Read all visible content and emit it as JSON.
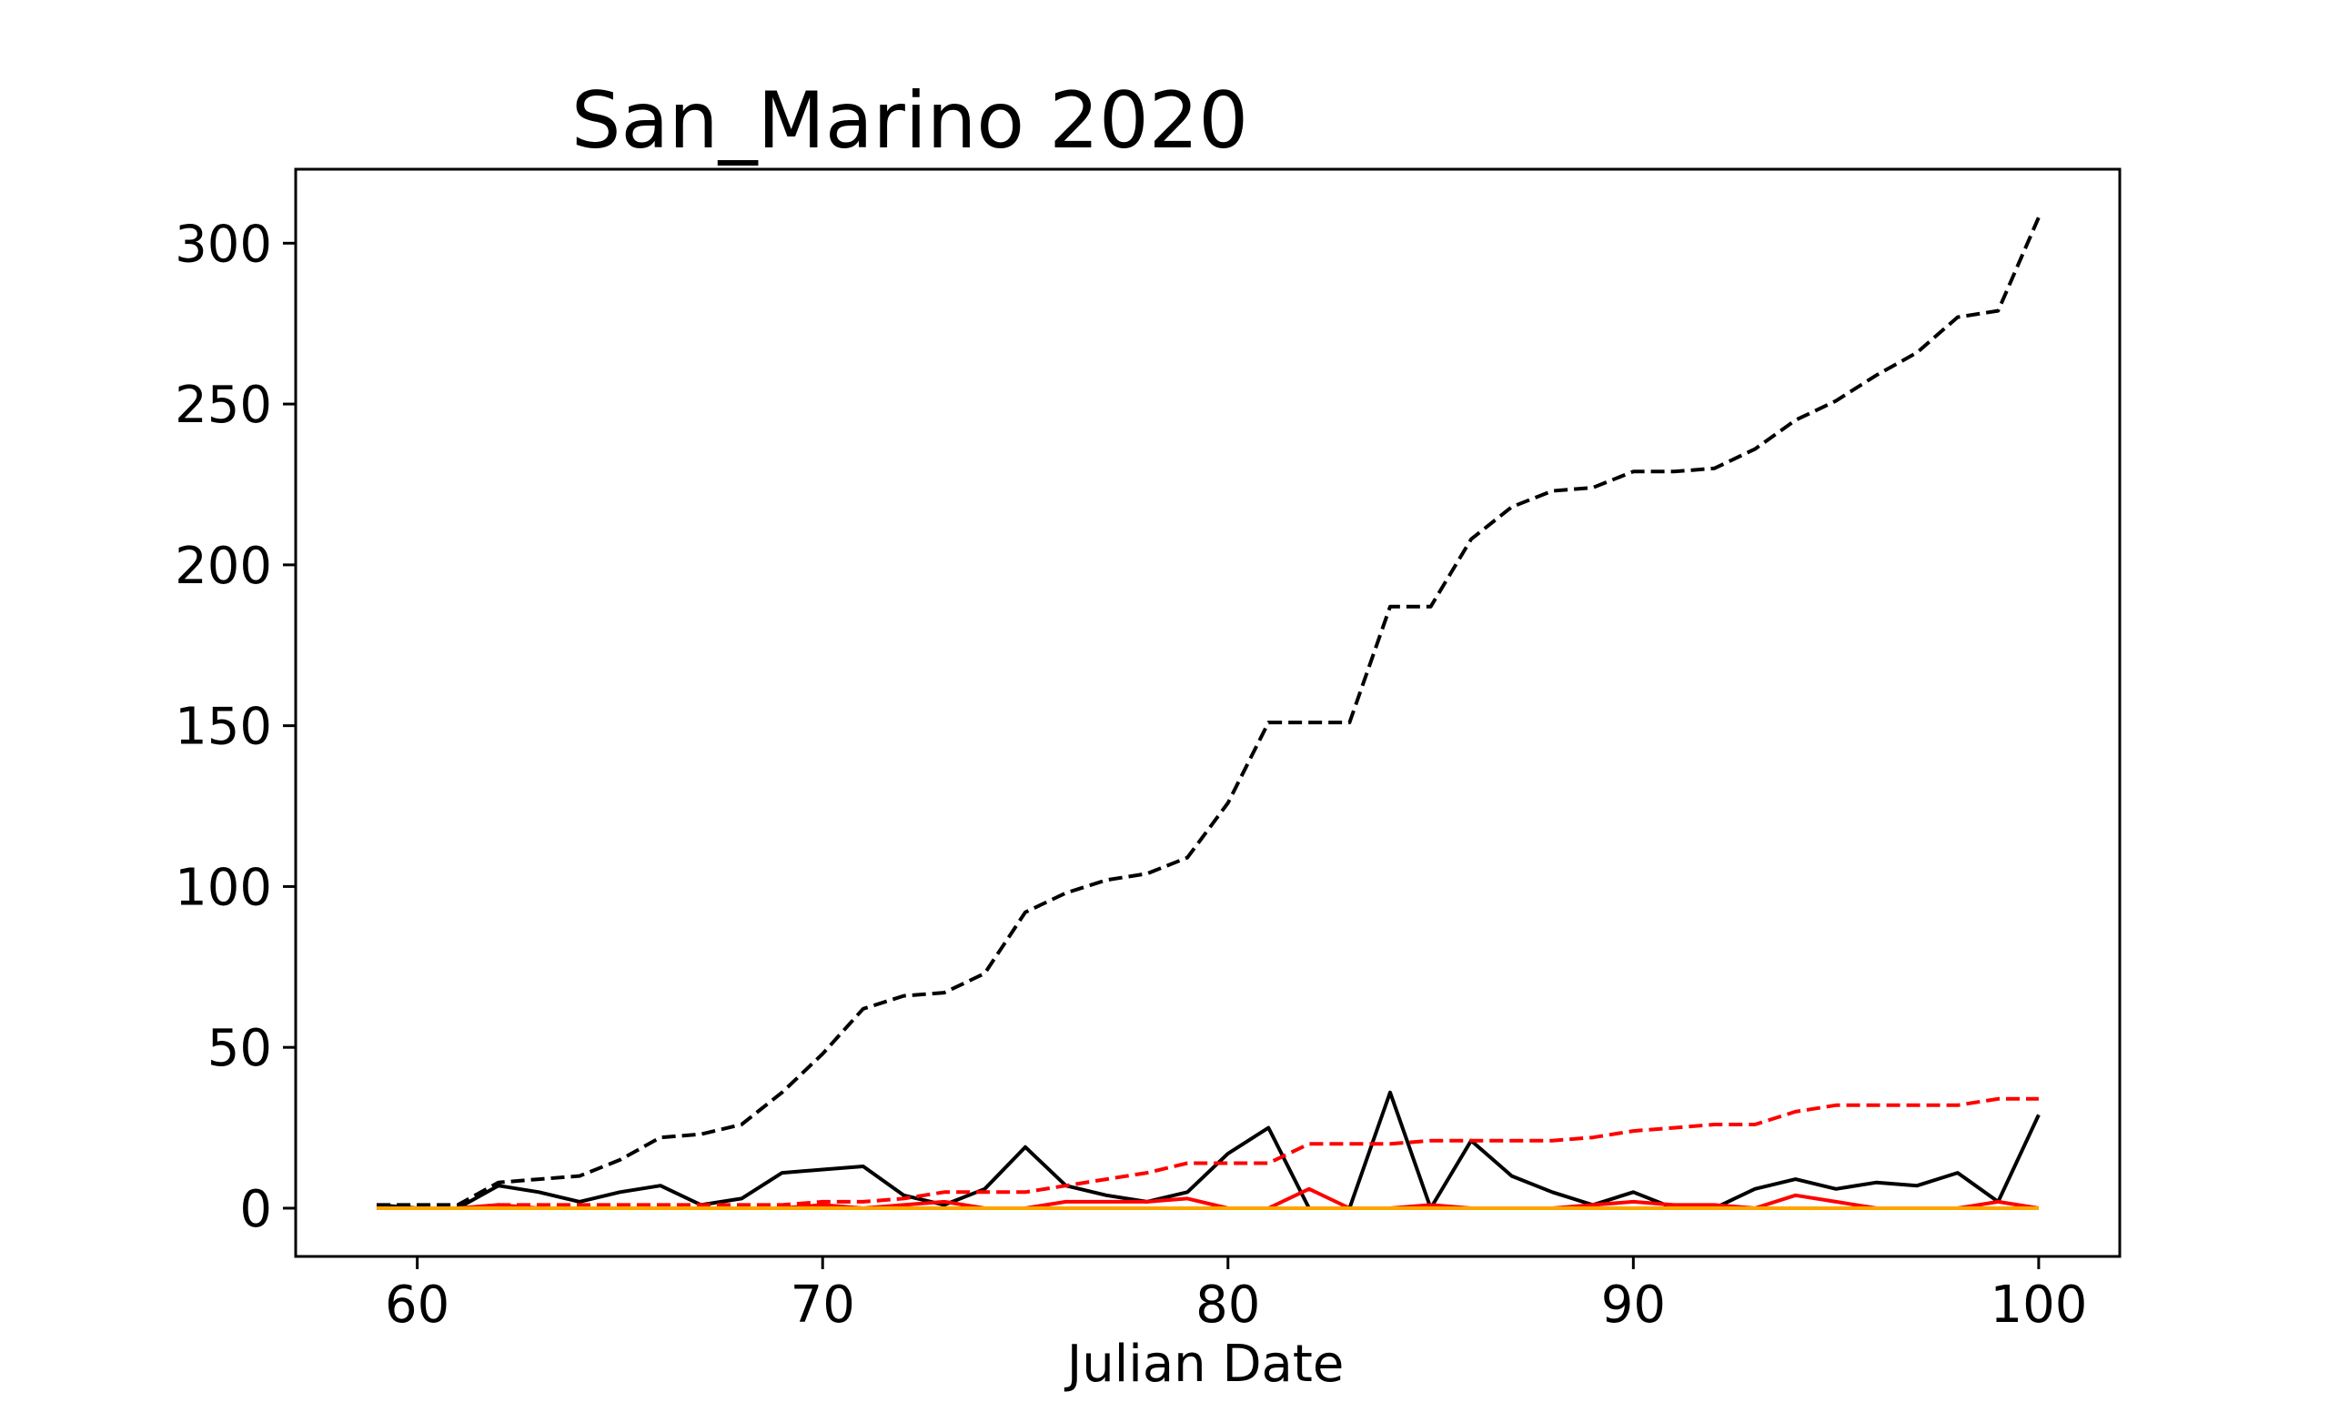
{
  "chart_data": {
    "type": "line",
    "title": "San_Marino 2020",
    "xlabel": "Julian Date",
    "ylabel": "",
    "xlim": [
      57,
      102
    ],
    "ylim": [
      -15,
      323
    ],
    "xticks": [
      60,
      70,
      80,
      90,
      100
    ],
    "yticks": [
      0,
      50,
      100,
      150,
      200,
      250,
      300
    ],
    "grid": false,
    "legend": "none",
    "x": [
      59,
      60,
      61,
      62,
      63,
      64,
      65,
      66,
      67,
      68,
      69,
      70,
      71,
      72,
      73,
      74,
      75,
      76,
      77,
      78,
      79,
      80,
      81,
      82,
      83,
      84,
      85,
      86,
      87,
      88,
      89,
      90,
      91,
      92,
      93,
      94,
      95,
      96,
      97,
      98,
      99,
      100
    ],
    "series": [
      {
        "color": "#000000",
        "style": "dashed",
        "values": [
          1,
          1,
          1,
          8,
          9,
          10,
          15,
          22,
          23,
          26,
          36,
          48,
          62,
          66,
          67,
          73,
          92,
          98,
          102,
          104,
          109,
          126,
          151,
          151,
          151,
          187,
          187,
          208,
          218,
          223,
          224,
          229,
          229,
          230,
          236,
          245,
          251,
          259,
          266,
          277,
          279,
          308
        ]
      },
      {
        "color": "#000000",
        "style": "solid",
        "values": [
          1,
          0,
          0,
          7,
          5,
          2,
          5,
          7,
          1,
          3,
          11,
          12,
          13,
          4,
          1,
          6,
          19,
          7,
          4,
          2,
          5,
          17,
          25,
          0,
          0,
          36,
          0,
          21,
          10,
          5,
          1,
          5,
          0,
          0,
          6,
          9,
          6,
          8,
          7,
          11,
          2,
          29
        ]
      },
      {
        "color": "#ff0000",
        "style": "dashed",
        "values": [
          0,
          0,
          0,
          1,
          1,
          1,
          1,
          1,
          1,
          1,
          1,
          2,
          2,
          3,
          5,
          5,
          5,
          7,
          9,
          11,
          14,
          14,
          14,
          20,
          20,
          20,
          21,
          21,
          21,
          21,
          22,
          24,
          25,
          26,
          26,
          30,
          32,
          32,
          32,
          32,
          34,
          34
        ]
      },
      {
        "color": "#ff0000",
        "style": "solid",
        "values": [
          0,
          0,
          0,
          1,
          0,
          0,
          0,
          0,
          0,
          0,
          0,
          1,
          0,
          1,
          2,
          0,
          0,
          2,
          2,
          2,
          3,
          0,
          0,
          6,
          0,
          0,
          1,
          0,
          0,
          0,
          1,
          2,
          1,
          1,
          0,
          4,
          2,
          0,
          0,
          0,
          2,
          0
        ]
      },
      {
        "color": "#ffa500",
        "style": "solid",
        "values": [
          0,
          0,
          0,
          0,
          0,
          0,
          0,
          0,
          0,
          0,
          0,
          0,
          0,
          0,
          0,
          0,
          0,
          0,
          0,
          0,
          0,
          0,
          0,
          0,
          0,
          0,
          0,
          0,
          0,
          0,
          0,
          0,
          0,
          0,
          0,
          0,
          0,
          0,
          0,
          0,
          0,
          0
        ]
      }
    ]
  }
}
